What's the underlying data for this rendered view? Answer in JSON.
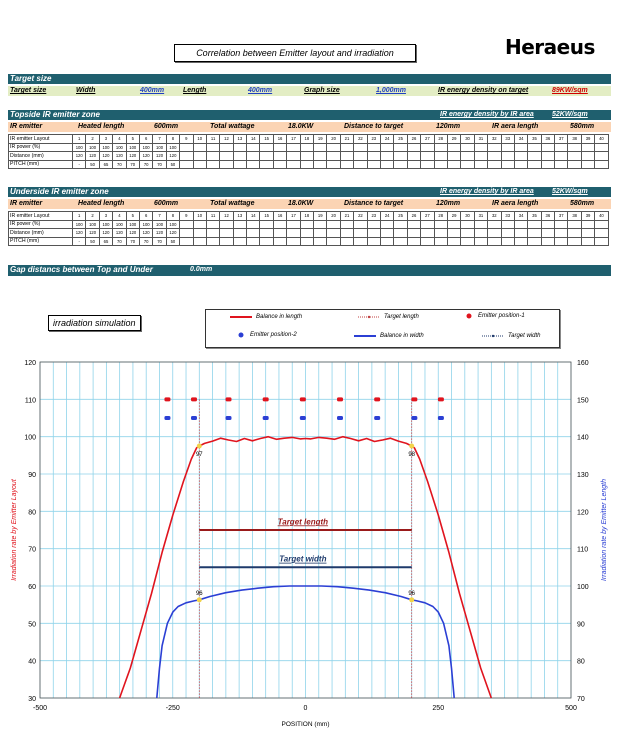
{
  "header": {
    "title": "Correlation between Emitter layout and irradiation",
    "logo": "Heraeus"
  },
  "target_size": {
    "section_title": "Target size",
    "label": "Target size",
    "width_label": "Width",
    "width_value": "400mm",
    "length_label": "Length",
    "length_value": "400mm",
    "graph_label": "Graph size",
    "graph_value": "1,000mm",
    "energy_label": "IR energy density on target",
    "energy_value": "89KW/sqm"
  },
  "topside": {
    "section_title": "Topside IR emitter zone",
    "density_label": "IR energy density by IR area",
    "density_value": "52KW/sqm",
    "emitter_label": "IR emitter",
    "heated_label": "Heated length",
    "heated_value": "600mm",
    "wattage_label": "Total wattage",
    "wattage_value": "18.0KW",
    "distance_label": "Distance to target",
    "distance_value": "120mm",
    "area_label": "IR aera length",
    "area_value": "580mm",
    "rows": [
      {
        "label": "IR emitter Layout",
        "cells": [
          "1",
          "2",
          "3",
          "4",
          "5",
          "6",
          "7",
          "8",
          "9",
          "10",
          "11",
          "12",
          "13",
          "14",
          "15",
          "16",
          "17",
          "18",
          "19",
          "20",
          "21",
          "22",
          "23",
          "24",
          "25",
          "26",
          "27",
          "28",
          "29",
          "30",
          "31",
          "32",
          "33",
          "34",
          "35",
          "36",
          "37",
          "38",
          "39",
          "40"
        ]
      },
      {
        "label": "IR power (%)",
        "cells": [
          "100",
          "100",
          "100",
          "100",
          "100",
          "100",
          "100",
          "100",
          "",
          "",
          "",
          "",
          "",
          "",
          "",
          "",
          "",
          "",
          "",
          "",
          "",
          "",
          "",
          "",
          "",
          "",
          "",
          "",
          "",
          "",
          "",
          "",
          "",
          "",
          "",
          "",
          "",
          "",
          "",
          ""
        ]
      },
      {
        "label": "Distance (mm)",
        "cells": [
          "120",
          "120",
          "120",
          "120",
          "120",
          "120",
          "120",
          "120",
          "",
          "",
          "",
          "",
          "",
          "",
          "",
          "",
          "",
          "",
          "",
          "",
          "",
          "",
          "",
          "",
          "",
          "",
          "",
          "",
          "",
          "",
          "",
          "",
          "",
          "",
          "",
          "",
          "",
          "",
          "",
          ""
        ]
      },
      {
        "label": "PITCH (mm)",
        "cells": [
          "-",
          "50",
          "65",
          "70",
          "70",
          "70",
          "70",
          "50",
          "",
          "",
          "",
          "",
          "",
          "",
          "",
          "",
          "",
          "",
          "",
          "",
          "",
          "",
          "",
          "",
          "",
          "",
          "",
          "",
          "",
          "",
          "",
          "",
          "",
          "",
          "",
          "",
          "",
          "",
          "",
          ""
        ]
      }
    ]
  },
  "underside": {
    "section_title": "Underside IR emitter zone",
    "density_label": "IR energy density by IR area",
    "density_value": "52KW/sqm",
    "emitter_label": "IR emitter",
    "heated_label": "Heated length",
    "heated_value": "600mm",
    "wattage_label": "Total wattage",
    "wattage_value": "18.0KW",
    "distance_label": "Distance to target",
    "distance_value": "120mm",
    "area_label": "IR aera length",
    "area_value": "580mm",
    "rows": [
      {
        "label": "IR emitter Layout",
        "cells": [
          "1",
          "2",
          "3",
          "4",
          "5",
          "6",
          "7",
          "8",
          "9",
          "10",
          "11",
          "12",
          "13",
          "14",
          "15",
          "16",
          "17",
          "18",
          "19",
          "20",
          "21",
          "22",
          "23",
          "24",
          "25",
          "26",
          "27",
          "28",
          "29",
          "30",
          "31",
          "32",
          "33",
          "34",
          "35",
          "36",
          "37",
          "38",
          "39",
          "40"
        ]
      },
      {
        "label": "IR power (%)",
        "cells": [
          "100",
          "100",
          "100",
          "100",
          "100",
          "100",
          "100",
          "100",
          "",
          "",
          "",
          "",
          "",
          "",
          "",
          "",
          "",
          "",
          "",
          "",
          "",
          "",
          "",
          "",
          "",
          "",
          "",
          "",
          "",
          "",
          "",
          "",
          "",
          "",
          "",
          "",
          "",
          "",
          "",
          ""
        ]
      },
      {
        "label": "Distance (mm)",
        "cells": [
          "120",
          "120",
          "120",
          "120",
          "120",
          "120",
          "120",
          "120",
          "",
          "",
          "",
          "",
          "",
          "",
          "",
          "",
          "",
          "",
          "",
          "",
          "",
          "",
          "",
          "",
          "",
          "",
          "",
          "",
          "",
          "",
          "",
          "",
          "",
          "",
          "",
          "",
          "",
          "",
          "",
          ""
        ]
      },
      {
        "label": "PITCH (mm)",
        "cells": [
          "-",
          "50",
          "65",
          "70",
          "70",
          "70",
          "70",
          "50",
          "",
          "",
          "",
          "",
          "",
          "",
          "",
          "",
          "",
          "",
          "",
          "",
          "",
          "",
          "",
          "",
          "",
          "",
          "",
          "",
          "",
          "",
          "",
          "",
          "",
          "",
          "",
          "",
          "",
          "",
          "",
          ""
        ]
      }
    ]
  },
  "gap": {
    "label": "Gap distancs between Top and Under",
    "value": "0.0mm"
  },
  "sim_label": "irradiation simulation",
  "legend": {
    "balance_length": "Balance in length",
    "target_length": "Target length",
    "emitter_pos1": "Emitter position-1",
    "emitter_pos2": "Emitter position-2",
    "balance_width": "Balance in width",
    "target_width": "Target width"
  },
  "colors": {
    "band": "#1f5f6e",
    "red": "#e0141e",
    "blue": "#2b3fd4",
    "darkred": "#9a1a1a",
    "navy": "#1f3a6b",
    "marker": "#f2d34a"
  },
  "chart_data": {
    "type": "line",
    "xlabel": "POSITION (mm)",
    "ylabel": "Irradiation rate by Emitter Layout",
    "y2label": "Irradiation rate by Emitter Length",
    "xlim": [
      -500,
      500
    ],
    "ylim": [
      30,
      120
    ],
    "y2lim": [
      70,
      160
    ],
    "x_ticks": [
      "-500",
      "-250",
      "0",
      "250",
      "500"
    ],
    "y_ticks": [
      "30",
      "40",
      "50",
      "60",
      "70",
      "80",
      "90",
      "100",
      "110",
      "120"
    ],
    "y2_ticks": [
      "70",
      "80",
      "90",
      "100",
      "110",
      "120",
      "130",
      "140",
      "150",
      "160"
    ],
    "series": [
      {
        "name": "Balance in length",
        "axis": "left",
        "x": [
          -350,
          -330,
          -310,
          -290,
          -270,
          -250,
          -230,
          -215,
          -205,
          -200,
          -190,
          -175,
          -160,
          -145,
          -130,
          -115,
          -100,
          -85,
          -70,
          -55,
          -40,
          -25,
          -10,
          0,
          10,
          25,
          40,
          55,
          70,
          85,
          100,
          115,
          130,
          145,
          160,
          175,
          190,
          200,
          205,
          215,
          230,
          250,
          270,
          290,
          310,
          330,
          350
        ],
        "y": [
          30,
          38,
          48,
          58,
          69,
          79,
          88,
          94,
          97,
          97.5,
          98.2,
          98.8,
          99.6,
          99.1,
          98.7,
          99.5,
          98.9,
          99.5,
          100,
          99.3,
          99.6,
          99.8,
          99.4,
          99.5,
          99.4,
          99.8,
          99.6,
          99.3,
          100,
          99.5,
          98.9,
          99.5,
          98.7,
          99.1,
          99.6,
          98.8,
          98.2,
          97.5,
          97,
          94,
          88,
          79,
          69,
          58,
          48,
          38,
          30
        ]
      },
      {
        "name": "Balance in width",
        "axis": "left",
        "x": [
          -280,
          -275,
          -270,
          -260,
          -250,
          -240,
          -225,
          -210,
          -200,
          -180,
          -150,
          -120,
          -90,
          -60,
          -30,
          0,
          30,
          60,
          90,
          120,
          150,
          180,
          200,
          210,
          225,
          240,
          250,
          260,
          270,
          275,
          280
        ],
        "y": [
          30,
          38,
          44,
          50,
          53,
          54.5,
          55.5,
          56,
          56.3,
          57.2,
          58.2,
          58.9,
          59.4,
          59.8,
          60,
          60,
          60,
          59.8,
          59.4,
          58.9,
          58.2,
          57.2,
          56.3,
          56,
          55.5,
          54.5,
          53,
          50,
          44,
          38,
          30
        ]
      },
      {
        "name": "Emitter position-1",
        "axis": "left",
        "type": "scatter",
        "x": [
          -260,
          -210,
          -145,
          -75,
          -5,
          65,
          135,
          205,
          255
        ],
        "y": [
          110,
          110,
          110,
          110,
          110,
          110,
          110,
          110,
          110
        ]
      },
      {
        "name": "Emitter position-2",
        "axis": "left",
        "type": "scatter",
        "x": [
          -260,
          -210,
          -145,
          -75,
          -5,
          65,
          135,
          205,
          255
        ],
        "y": [
          105,
          105,
          105,
          105,
          105,
          105,
          105,
          105,
          105
        ]
      },
      {
        "name": "Target length",
        "axis": "left",
        "x": [
          -200,
          200
        ],
        "y": [
          75,
          75
        ]
      },
      {
        "name": "Target width",
        "axis": "left",
        "x": [
          -200,
          200
        ],
        "y": [
          65,
          65
        ]
      }
    ],
    "annotations": [
      {
        "text": "97",
        "x": -200,
        "y": 97.5
      },
      {
        "text": "98",
        "x": 200,
        "y": 97.5
      },
      {
        "text": "96",
        "x": -200,
        "y": 56.3
      },
      {
        "text": "96",
        "x": 200,
        "y": 56.3
      },
      {
        "text": "Target length",
        "x": -5,
        "y": 76.5
      },
      {
        "text": "Target width",
        "x": -5,
        "y": 66.5
      }
    ],
    "grid": true
  }
}
